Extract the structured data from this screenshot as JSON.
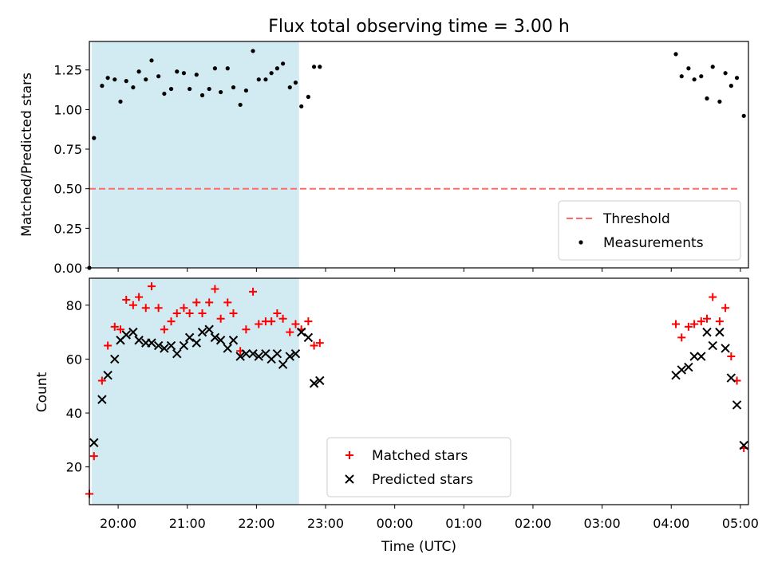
{
  "chart_data": {
    "type": "scatter",
    "title": "Flux total observing time = 3.00 h",
    "xlabel": "Time (UTC)",
    "x_ticks": [
      "20:00",
      "21:00",
      "22:00",
      "23:00",
      "00:00",
      "01:00",
      "02:00",
      "03:00",
      "04:00",
      "05:00"
    ],
    "shaded_interval": [
      "19:37",
      "22:37"
    ],
    "panels": [
      {
        "id": "ratio",
        "ylabel": "Matched/Predicted stars",
        "ylim": [
          0,
          1.43
        ],
        "y_ticks": [
          "0.00",
          "0.25",
          "0.50",
          "0.75",
          "1.00",
          "1.25"
        ],
        "legend_position": "lower-right",
        "threshold": {
          "name": "Threshold",
          "value": 0.5,
          "x_range": [
            "19:35",
            "04:59"
          ],
          "color": "#ff6b6b"
        },
        "series": [
          {
            "name": "Measurements",
            "marker": "dot",
            "color": "#000000",
            "points": [
              [
                "19:35",
                0.0
              ],
              [
                "19:39",
                0.82
              ],
              [
                "19:46",
                1.15
              ],
              [
                "19:51",
                1.2
              ],
              [
                "19:57",
                1.19
              ],
              [
                "20:02",
                1.05
              ],
              [
                "20:07",
                1.18
              ],
              [
                "20:13",
                1.14
              ],
              [
                "20:18",
                1.24
              ],
              [
                "20:24",
                1.19
              ],
              [
                "20:29",
                1.31
              ],
              [
                "20:35",
                1.21
              ],
              [
                "20:40",
                1.1
              ],
              [
                "20:46",
                1.13
              ],
              [
                "20:51",
                1.24
              ],
              [
                "20:57",
                1.23
              ],
              [
                "21:02",
                1.13
              ],
              [
                "21:08",
                1.22
              ],
              [
                "21:13",
                1.09
              ],
              [
                "21:19",
                1.13
              ],
              [
                "21:24",
                1.26
              ],
              [
                "21:29",
                1.11
              ],
              [
                "21:35",
                1.26
              ],
              [
                "21:40",
                1.14
              ],
              [
                "21:46",
                1.03
              ],
              [
                "21:51",
                1.12
              ],
              [
                "21:57",
                1.37
              ],
              [
                "22:02",
                1.19
              ],
              [
                "22:08",
                1.19
              ],
              [
                "22:13",
                1.23
              ],
              [
                "22:18",
                1.26
              ],
              [
                "22:23",
                1.29
              ],
              [
                "22:29",
                1.14
              ],
              [
                "22:34",
                1.17
              ],
              [
                "22:39",
                1.02
              ],
              [
                "22:45",
                1.08
              ],
              [
                "22:50",
                1.27
              ],
              [
                "22:55",
                1.27
              ],
              [
                "04:04",
                1.35
              ],
              [
                "04:09",
                1.21
              ],
              [
                "04:15",
                1.26
              ],
              [
                "04:20",
                1.19
              ],
              [
                "04:26",
                1.21
              ],
              [
                "04:31",
                1.07
              ],
              [
                "04:36",
                1.27
              ],
              [
                "04:42",
                1.05
              ],
              [
                "04:47",
                1.23
              ],
              [
                "04:52",
                1.15
              ],
              [
                "04:57",
                1.2
              ],
              [
                "05:03",
                0.96
              ]
            ]
          }
        ]
      },
      {
        "id": "count",
        "ylabel": "Count",
        "ylim": [
          6,
          90
        ],
        "y_ticks": [
          "20",
          "40",
          "60",
          "80"
        ],
        "legend_position": "lower-center",
        "series": [
          {
            "name": "Matched stars",
            "marker": "plus",
            "color": "#ff0000",
            "points": [
              [
                "19:35",
                10
              ],
              [
                "19:39",
                24
              ],
              [
                "19:46",
                52
              ],
              [
                "19:51",
                65
              ],
              [
                "19:57",
                72
              ],
              [
                "20:02",
                71
              ],
              [
                "20:07",
                82
              ],
              [
                "20:13",
                80
              ],
              [
                "20:18",
                83
              ],
              [
                "20:24",
                79
              ],
              [
                "20:29",
                87
              ],
              [
                "20:35",
                79
              ],
              [
                "20:40",
                71
              ],
              [
                "20:46",
                74
              ],
              [
                "20:51",
                77
              ],
              [
                "20:57",
                79
              ],
              [
                "21:02",
                77
              ],
              [
                "21:08",
                81
              ],
              [
                "21:13",
                77
              ],
              [
                "21:19",
                81
              ],
              [
                "21:24",
                86
              ],
              [
                "21:29",
                75
              ],
              [
                "21:35",
                81
              ],
              [
                "21:40",
                77
              ],
              [
                "21:46",
                63
              ],
              [
                "21:51",
                71
              ],
              [
                "21:57",
                85
              ],
              [
                "22:02",
                73
              ],
              [
                "22:08",
                74
              ],
              [
                "22:13",
                74
              ],
              [
                "22:18",
                77
              ],
              [
                "22:23",
                75
              ],
              [
                "22:29",
                70
              ],
              [
                "22:34",
                73
              ],
              [
                "22:39",
                71
              ],
              [
                "22:45",
                74
              ],
              [
                "22:50",
                65
              ],
              [
                "22:55",
                66
              ],
              [
                "04:04",
                73
              ],
              [
                "04:09",
                68
              ],
              [
                "04:15",
                72
              ],
              [
                "04:20",
                73
              ],
              [
                "04:26",
                74
              ],
              [
                "04:31",
                75
              ],
              [
                "04:36",
                83
              ],
              [
                "04:42",
                74
              ],
              [
                "04:47",
                79
              ],
              [
                "04:52",
                61
              ],
              [
                "04:57",
                52
              ],
              [
                "05:03",
                27
              ]
            ]
          },
          {
            "name": "Predicted stars",
            "marker": "x",
            "color": "#000000",
            "points": [
              [
                "19:39",
                29
              ],
              [
                "19:46",
                45
              ],
              [
                "19:51",
                54
              ],
              [
                "19:57",
                60
              ],
              [
                "20:02",
                67
              ],
              [
                "20:07",
                69
              ],
              [
                "20:13",
                70
              ],
              [
                "20:18",
                67
              ],
              [
                "20:24",
                66
              ],
              [
                "20:29",
                66
              ],
              [
                "20:35",
                65
              ],
              [
                "20:40",
                64
              ],
              [
                "20:46",
                65
              ],
              [
                "20:51",
                62
              ],
              [
                "20:57",
                65
              ],
              [
                "21:02",
                68
              ],
              [
                "21:08",
                66
              ],
              [
                "21:13",
                70
              ],
              [
                "21:19",
                71
              ],
              [
                "21:24",
                68
              ],
              [
                "21:29",
                67
              ],
              [
                "21:35",
                64
              ],
              [
                "21:40",
                67
              ],
              [
                "21:46",
                61
              ],
              [
                "21:51",
                62
              ],
              [
                "21:57",
                62
              ],
              [
                "22:02",
                61
              ],
              [
                "22:08",
                62
              ],
              [
                "22:13",
                60
              ],
              [
                "22:18",
                62
              ],
              [
                "22:23",
                58
              ],
              [
                "22:29",
                61
              ],
              [
                "22:34",
                62
              ],
              [
                "22:39",
                70
              ],
              [
                "22:45",
                68
              ],
              [
                "22:50",
                51
              ],
              [
                "22:55",
                52
              ],
              [
                "04:04",
                54
              ],
              [
                "04:09",
                56
              ],
              [
                "04:15",
                57
              ],
              [
                "04:20",
                61
              ],
              [
                "04:26",
                61
              ],
              [
                "04:31",
                70
              ],
              [
                "04:36",
                65
              ],
              [
                "04:42",
                70
              ],
              [
                "04:47",
                64
              ],
              [
                "04:52",
                53
              ],
              [
                "04:57",
                43
              ],
              [
                "05:03",
                28
              ]
            ]
          }
        ]
      }
    ]
  }
}
